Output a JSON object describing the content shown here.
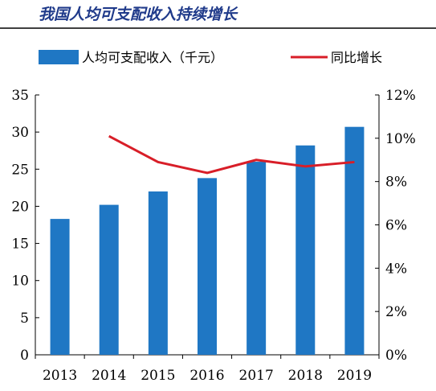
{
  "colors": {
    "title": "#1f3a8a",
    "bar": "#1f77c4",
    "line": "#d81e28",
    "axis": "#000000"
  },
  "chart_data": {
    "type": "bar+line",
    "title": "我国人均可支配收入持续增长",
    "legend": {
      "placement": "top"
    },
    "categories": [
      "2013",
      "2014",
      "2015",
      "2016",
      "2017",
      "2018",
      "2019"
    ],
    "series": [
      {
        "name": "人均可支配收入（千元）",
        "type": "bar",
        "axis": "left",
        "values": [
          18.3,
          20.2,
          22.0,
          23.8,
          26.0,
          28.2,
          30.7
        ]
      },
      {
        "name": "同比增长",
        "type": "line",
        "axis": "right",
        "values": [
          null,
          10.1,
          8.9,
          8.4,
          9.0,
          8.7,
          8.9
        ]
      }
    ],
    "y_left": {
      "min": 0,
      "max": 35,
      "ticks": [
        "0",
        "5",
        "10",
        "15",
        "20",
        "25",
        "30",
        "35"
      ]
    },
    "y_right": {
      "min": 0,
      "max": 12,
      "ticks": [
        "0%",
        "2%",
        "4%",
        "6%",
        "8%",
        "10%",
        "12%"
      ]
    },
    "grid": false
  }
}
